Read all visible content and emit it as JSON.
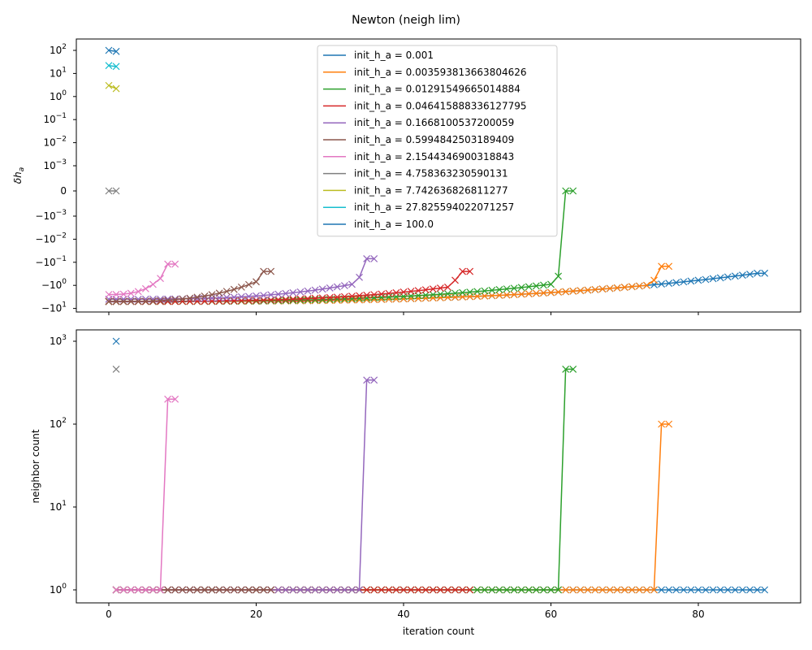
{
  "title": "Newton (neigh lim)",
  "chart_data": [
    {
      "type": "line",
      "panel": "top",
      "ylabel": "δh_a",
      "ylabel_plain": "δh",
      "ylabel_sub": "a",
      "yscale": "symlog",
      "x_ticks": [
        "0",
        "20",
        "40",
        "60",
        "80"
      ],
      "y_ticks": [
        {
          "v": 100,
          "label": "10",
          "exp": "2"
        },
        {
          "v": 10,
          "label": "10",
          "exp": "1"
        },
        {
          "v": 1,
          "label": "10",
          "exp": "0"
        },
        {
          "v": 0.1,
          "label": "10",
          "exp": "−1"
        },
        {
          "v": 0.01,
          "label": "10",
          "exp": "−2"
        },
        {
          "v": 0.001,
          "label": "10",
          "exp": "−3"
        },
        {
          "v": 0,
          "label": "0",
          "exp": ""
        },
        {
          "v": -0.001,
          "label": "−10",
          "exp": "−3"
        },
        {
          "v": -0.01,
          "label": "−10",
          "exp": "−2"
        },
        {
          "v": -0.1,
          "label": "−10",
          "exp": "−1"
        },
        {
          "v": -1,
          "label": "−10",
          "exp": "0"
        },
        {
          "v": -10,
          "label": "−10",
          "exp": "1"
        }
      ],
      "legend_loc": "upper center",
      "series": [
        {
          "name": "init_h_a = 0.001",
          "color": "#1f77b4",
          "values": [
            [
              0,
              -5
            ],
            [
              88,
              -0.3
            ],
            [
              89,
              -0.3
            ]
          ]
        },
        {
          "name": "init_h_a = 0.003593813663804626",
          "color": "#ff7f0e",
          "values": [
            [
              0,
              -5
            ],
            [
              73,
              -1
            ],
            [
              74,
              -0.6
            ],
            [
              75,
              -0.15
            ],
            [
              76,
              -0.15
            ]
          ]
        },
        {
          "name": "init_h_a = 0.01291549665014884",
          "color": "#2ca02c",
          "values": [
            [
              0,
              -5
            ],
            [
              60,
              -0.9
            ],
            [
              61,
              -0.4
            ],
            [
              62,
              0
            ],
            [
              63,
              0
            ]
          ]
        },
        {
          "name": "init_h_a = 0.046415888336127795",
          "color": "#d62728",
          "values": [
            [
              0,
              -5
            ],
            [
              46,
              -1.2
            ],
            [
              47,
              -0.6
            ],
            [
              48,
              -0.25
            ],
            [
              49,
              -0.25
            ]
          ]
        },
        {
          "name": "init_h_a = 0.1668100537200059",
          "color": "#9467bd",
          "values": [
            [
              0,
              -4
            ],
            [
              33,
              -0.9
            ],
            [
              34,
              -0.45
            ],
            [
              35,
              -0.07
            ],
            [
              36,
              -0.07
            ]
          ]
        },
        {
          "name": "init_h_a = 0.5994842503189409",
          "color": "#8c564b",
          "values": [
            [
              0,
              -5
            ],
            [
              20,
              -0.7
            ],
            [
              21,
              -0.25
            ],
            [
              22,
              -0.25
            ]
          ]
        },
        {
          "name": "init_h_a = 2.1544346900318843",
          "color": "#e377c2",
          "values": [
            [
              0,
              -2.5
            ],
            [
              7,
              -0.5
            ],
            [
              8,
              -0.12
            ],
            [
              9,
              -0.12
            ]
          ]
        },
        {
          "name": "init_h_a = 4.758363230590131",
          "color": "#7f7f7f",
          "values": [
            [
              0,
              0
            ],
            [
              1,
              0
            ]
          ]
        },
        {
          "name": "init_h_a = 7.742636826811277",
          "color": "#bcbd22",
          "values": [
            [
              0,
              3
            ],
            [
              1,
              2.2
            ]
          ]
        },
        {
          "name": "init_h_a = 27.825594022071257",
          "color": "#17becf",
          "values": [
            [
              0,
              22
            ],
            [
              1,
              20
            ]
          ]
        },
        {
          "name": "init_h_a = 100.0",
          "color": "#1f77b4",
          "values": [
            [
              0,
              100
            ],
            [
              1,
              90
            ]
          ]
        }
      ]
    },
    {
      "type": "line",
      "panel": "bottom",
      "xlabel": "iteration count",
      "ylabel": "neighbor count",
      "yscale": "log",
      "ylim": [
        0.7,
        1500
      ],
      "x_ticks": [
        "0",
        "20",
        "40",
        "60",
        "80"
      ],
      "y_ticks": [
        {
          "v": 1,
          "label": "10",
          "exp": "0"
        },
        {
          "v": 10,
          "label": "10",
          "exp": "1"
        },
        {
          "v": 100,
          "label": "10",
          "exp": "2"
        },
        {
          "v": 1000,
          "label": "10",
          "exp": "3"
        }
      ],
      "series": [
        {
          "name": "init_h_a = 0.001",
          "color": "#1f77b4",
          "values": [
            [
              1,
              1
            ],
            [
              89,
              1
            ]
          ]
        },
        {
          "name": "init_h_a = 0.003593813663804626",
          "color": "#ff7f0e",
          "values": [
            [
              1,
              1
            ],
            [
              74,
              1
            ],
            [
              75,
              100
            ],
            [
              76,
              100
            ]
          ]
        },
        {
          "name": "init_h_a = 0.01291549665014884",
          "color": "#2ca02c",
          "values": [
            [
              1,
              1
            ],
            [
              61,
              1
            ],
            [
              62,
              460
            ],
            [
              63,
              460
            ]
          ]
        },
        {
          "name": "init_h_a = 0.046415888336127795",
          "color": "#d62728",
          "values": [
            [
              1,
              1
            ],
            [
              49,
              1
            ]
          ]
        },
        {
          "name": "init_h_a = 0.1668100537200059",
          "color": "#9467bd",
          "values": [
            [
              1,
              1
            ],
            [
              34,
              1
            ],
            [
              35,
              340
            ],
            [
              36,
              340
            ]
          ]
        },
        {
          "name": "init_h_a = 0.5994842503189409",
          "color": "#8c564b",
          "values": [
            [
              1,
              1
            ],
            [
              22,
              1
            ]
          ]
        },
        {
          "name": "init_h_a = 2.1544346900318843",
          "color": "#e377c2",
          "values": [
            [
              1,
              1
            ],
            [
              7,
              1
            ],
            [
              8,
              200
            ],
            [
              9,
              200
            ]
          ]
        },
        {
          "name": "init_h_a = 4.758363230590131",
          "color": "#7f7f7f",
          "values": [
            [
              1,
              460
            ]
          ]
        },
        {
          "name": "init_h_a = 100.0",
          "color": "#1f77b4",
          "values": [
            [
              1,
              1000
            ]
          ]
        }
      ]
    }
  ]
}
